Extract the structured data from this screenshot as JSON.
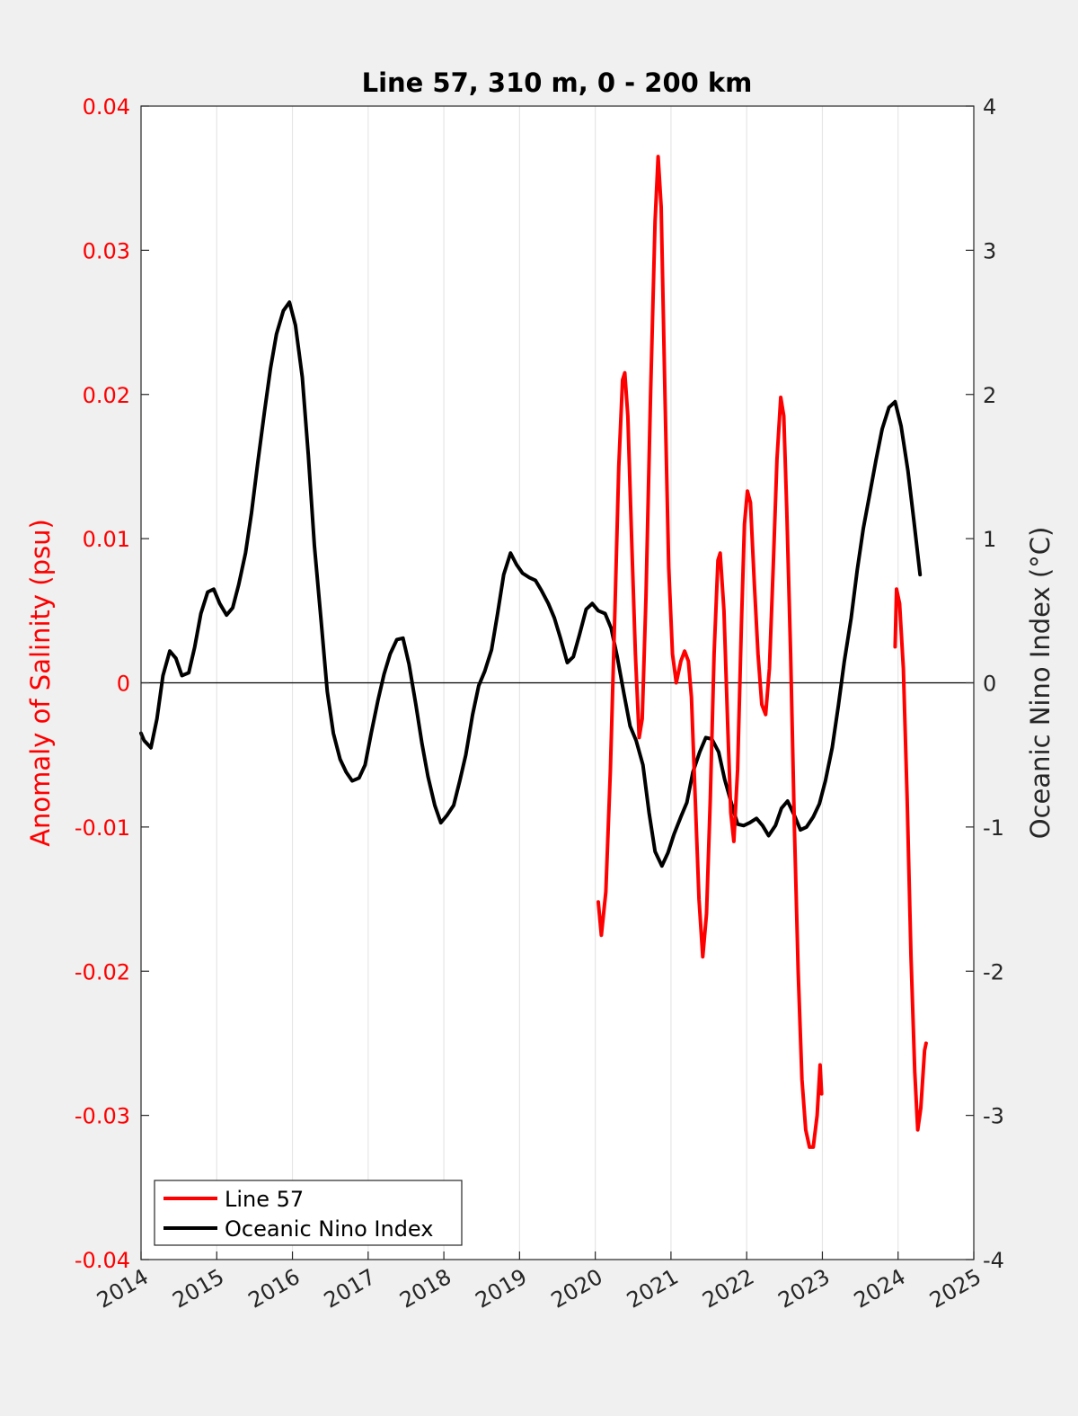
{
  "chart_data": {
    "type": "line",
    "title": "Line 57, 310 m, 0 - 200 km",
    "ylabel_left": "Anomaly of Salinity (psu)",
    "ylabel_right": "Oceanic Nino Index (°C)",
    "xlim": [
      2014,
      2025
    ],
    "ylim_left": [
      -0.04,
      0.04
    ],
    "ylim_right": [
      -4,
      4
    ],
    "x_ticks": [
      "2014",
      "2015",
      "2016",
      "2017",
      "2018",
      "2019",
      "2020",
      "2021",
      "2022",
      "2023",
      "2024",
      "2025"
    ],
    "y_left_ticks": [
      "0.04",
      "0.03",
      "0.02",
      "0.01",
      "0",
      "-0.01",
      "-0.02",
      "-0.03",
      "-0.04"
    ],
    "y_right_ticks": [
      "4",
      "3",
      "2",
      "1",
      "0",
      "-1",
      "-2",
      "-3",
      "-4"
    ],
    "grid": "vertical",
    "legend_position": "bottom-left",
    "colors": {
      "line57": "#ff0000",
      "oni": "#000000"
    },
    "legend": [
      "Line 57",
      "Oceanic Nino Index"
    ],
    "series": [
      {
        "name": "Line 57",
        "axis": "left",
        "color": "#ff0000",
        "points": [
          [
            2020.04,
            -0.0152
          ],
          [
            2020.08,
            -0.0175
          ],
          [
            2020.14,
            -0.0145
          ],
          [
            2020.2,
            -0.006
          ],
          [
            2020.26,
            0.005
          ],
          [
            2020.31,
            0.015
          ],
          [
            2020.36,
            0.021
          ],
          [
            2020.39,
            0.0215
          ],
          [
            2020.43,
            0.0185
          ],
          [
            2020.48,
            0.01
          ],
          [
            2020.53,
            0.002
          ],
          [
            2020.58,
            -0.0038
          ],
          [
            2020.62,
            -0.0025
          ],
          [
            2020.67,
            0.006
          ],
          [
            2020.73,
            0.02
          ],
          [
            2020.79,
            0.032
          ],
          [
            2020.83,
            0.0365
          ],
          [
            2020.87,
            0.033
          ],
          [
            2020.92,
            0.02
          ],
          [
            2020.97,
            0.008
          ],
          [
            2021.02,
            0.002
          ],
          [
            2021.07,
            0.0
          ],
          [
            2021.13,
            0.0015
          ],
          [
            2021.18,
            0.0022
          ],
          [
            2021.23,
            0.0015
          ],
          [
            2021.27,
            -0.001
          ],
          [
            2021.32,
            -0.008
          ],
          [
            2021.37,
            -0.015
          ],
          [
            2021.42,
            -0.019
          ],
          [
            2021.47,
            -0.016
          ],
          [
            2021.52,
            -0.008
          ],
          [
            2021.57,
            0.002
          ],
          [
            2021.62,
            0.0085
          ],
          [
            2021.65,
            0.009
          ],
          [
            2021.7,
            0.005
          ],
          [
            2021.75,
            -0.003
          ],
          [
            2021.79,
            -0.009
          ],
          [
            2021.83,
            -0.011
          ],
          [
            2021.88,
            -0.006
          ],
          [
            2021.93,
            0.004
          ],
          [
            2021.97,
            0.011
          ],
          [
            2022.01,
            0.0133
          ],
          [
            2022.05,
            0.0125
          ],
          [
            2022.1,
            0.007
          ],
          [
            2022.15,
            0.002
          ],
          [
            2022.2,
            -0.0015
          ],
          [
            2022.25,
            -0.0022
          ],
          [
            2022.3,
            0.001
          ],
          [
            2022.35,
            0.008
          ],
          [
            2022.4,
            0.0155
          ],
          [
            2022.45,
            0.0198
          ],
          [
            2022.49,
            0.0185
          ],
          [
            2022.53,
            0.012
          ],
          [
            2022.58,
            0.002
          ],
          [
            2022.63,
            -0.01
          ],
          [
            2022.68,
            -0.02
          ],
          [
            2022.73,
            -0.0275
          ],
          [
            2022.78,
            -0.031
          ],
          [
            2022.83,
            -0.0322
          ],
          [
            2022.88,
            -0.0322
          ],
          [
            2022.93,
            -0.03
          ],
          [
            2022.97,
            -0.0265
          ],
          [
            2022.99,
            -0.0285
          ]
        ]
      },
      {
        "name": "Line 57 (2024)",
        "axis": "left",
        "color": "#ff0000",
        "points": [
          [
            2023.96,
            0.0025
          ],
          [
            2023.98,
            0.0065
          ],
          [
            2024.02,
            0.0055
          ],
          [
            2024.07,
            0.001
          ],
          [
            2024.12,
            -0.008
          ],
          [
            2024.17,
            -0.019
          ],
          [
            2024.22,
            -0.027
          ],
          [
            2024.26,
            -0.031
          ],
          [
            2024.3,
            -0.0295
          ],
          [
            2024.35,
            -0.0255
          ],
          [
            2024.37,
            -0.025
          ]
        ]
      },
      {
        "name": "Oceanic Nino Index",
        "axis": "right",
        "color": "#000000",
        "points": [
          [
            2014.0,
            -0.35
          ],
          [
            2014.04,
            -0.4
          ],
          [
            2014.13,
            -0.45
          ],
          [
            2014.21,
            -0.25
          ],
          [
            2014.29,
            0.05
          ],
          [
            2014.38,
            0.22
          ],
          [
            2014.46,
            0.17
          ],
          [
            2014.54,
            0.05
          ],
          [
            2014.63,
            0.07
          ],
          [
            2014.71,
            0.25
          ],
          [
            2014.79,
            0.48
          ],
          [
            2014.88,
            0.63
          ],
          [
            2014.96,
            0.65
          ],
          [
            2015.04,
            0.55
          ],
          [
            2015.13,
            0.47
          ],
          [
            2015.21,
            0.52
          ],
          [
            2015.29,
            0.68
          ],
          [
            2015.38,
            0.9
          ],
          [
            2015.46,
            1.18
          ],
          [
            2015.54,
            1.52
          ],
          [
            2015.63,
            1.88
          ],
          [
            2015.71,
            2.18
          ],
          [
            2015.79,
            2.42
          ],
          [
            2015.88,
            2.58
          ],
          [
            2015.96,
            2.64
          ],
          [
            2016.04,
            2.48
          ],
          [
            2016.13,
            2.12
          ],
          [
            2016.21,
            1.58
          ],
          [
            2016.29,
            0.95
          ],
          [
            2016.38,
            0.42
          ],
          [
            2016.46,
            -0.06
          ],
          [
            2016.54,
            -0.35
          ],
          [
            2016.63,
            -0.53
          ],
          [
            2016.71,
            -0.62
          ],
          [
            2016.79,
            -0.68
          ],
          [
            2016.88,
            -0.66
          ],
          [
            2016.96,
            -0.57
          ],
          [
            2017.04,
            -0.35
          ],
          [
            2017.13,
            -0.12
          ],
          [
            2017.21,
            0.06
          ],
          [
            2017.29,
            0.2
          ],
          [
            2017.38,
            0.3
          ],
          [
            2017.46,
            0.31
          ],
          [
            2017.54,
            0.13
          ],
          [
            2017.63,
            -0.15
          ],
          [
            2017.71,
            -0.42
          ],
          [
            2017.79,
            -0.65
          ],
          [
            2017.88,
            -0.85
          ],
          [
            2017.96,
            -0.97
          ],
          [
            2018.04,
            -0.92
          ],
          [
            2018.13,
            -0.85
          ],
          [
            2018.21,
            -0.68
          ],
          [
            2018.29,
            -0.5
          ],
          [
            2018.38,
            -0.22
          ],
          [
            2018.46,
            -0.02
          ],
          [
            2018.54,
            0.08
          ],
          [
            2018.63,
            0.23
          ],
          [
            2018.71,
            0.48
          ],
          [
            2018.79,
            0.75
          ],
          [
            2018.88,
            0.9
          ],
          [
            2018.96,
            0.82
          ],
          [
            2019.04,
            0.76
          ],
          [
            2019.13,
            0.73
          ],
          [
            2019.21,
            0.71
          ],
          [
            2019.29,
            0.64
          ],
          [
            2019.38,
            0.55
          ],
          [
            2019.46,
            0.45
          ],
          [
            2019.54,
            0.31
          ],
          [
            2019.63,
            0.14
          ],
          [
            2019.71,
            0.18
          ],
          [
            2019.79,
            0.33
          ],
          [
            2019.88,
            0.51
          ],
          [
            2019.96,
            0.55
          ],
          [
            2020.04,
            0.5
          ],
          [
            2020.13,
            0.48
          ],
          [
            2020.21,
            0.38
          ],
          [
            2020.29,
            0.18
          ],
          [
            2020.38,
            -0.08
          ],
          [
            2020.46,
            -0.3
          ],
          [
            2020.54,
            -0.4
          ],
          [
            2020.63,
            -0.57
          ],
          [
            2020.71,
            -0.9
          ],
          [
            2020.79,
            -1.17
          ],
          [
            2020.88,
            -1.27
          ],
          [
            2020.96,
            -1.18
          ],
          [
            2021.04,
            -1.05
          ],
          [
            2021.13,
            -0.93
          ],
          [
            2021.21,
            -0.83
          ],
          [
            2021.29,
            -0.62
          ],
          [
            2021.38,
            -0.48
          ],
          [
            2021.46,
            -0.38
          ],
          [
            2021.54,
            -0.39
          ],
          [
            2021.63,
            -0.48
          ],
          [
            2021.71,
            -0.67
          ],
          [
            2021.79,
            -0.82
          ],
          [
            2021.88,
            -0.98
          ],
          [
            2021.96,
            -0.99
          ],
          [
            2022.04,
            -0.97
          ],
          [
            2022.13,
            -0.94
          ],
          [
            2022.21,
            -0.99
          ],
          [
            2022.29,
            -1.06
          ],
          [
            2022.38,
            -0.99
          ],
          [
            2022.46,
            -0.87
          ],
          [
            2022.54,
            -0.82
          ],
          [
            2022.63,
            -0.92
          ],
          [
            2022.71,
            -1.02
          ],
          [
            2022.79,
            -1.0
          ],
          [
            2022.88,
            -0.93
          ],
          [
            2022.96,
            -0.84
          ],
          [
            2023.04,
            -0.68
          ],
          [
            2023.13,
            -0.45
          ],
          [
            2023.21,
            -0.16
          ],
          [
            2023.29,
            0.15
          ],
          [
            2023.38,
            0.45
          ],
          [
            2023.46,
            0.78
          ],
          [
            2023.54,
            1.07
          ],
          [
            2023.63,
            1.32
          ],
          [
            2023.71,
            1.55
          ],
          [
            2023.79,
            1.76
          ],
          [
            2023.88,
            1.91
          ],
          [
            2023.96,
            1.95
          ],
          [
            2024.04,
            1.78
          ],
          [
            2024.13,
            1.47
          ],
          [
            2024.21,
            1.12
          ],
          [
            2024.29,
            0.75
          ]
        ]
      }
    ]
  }
}
